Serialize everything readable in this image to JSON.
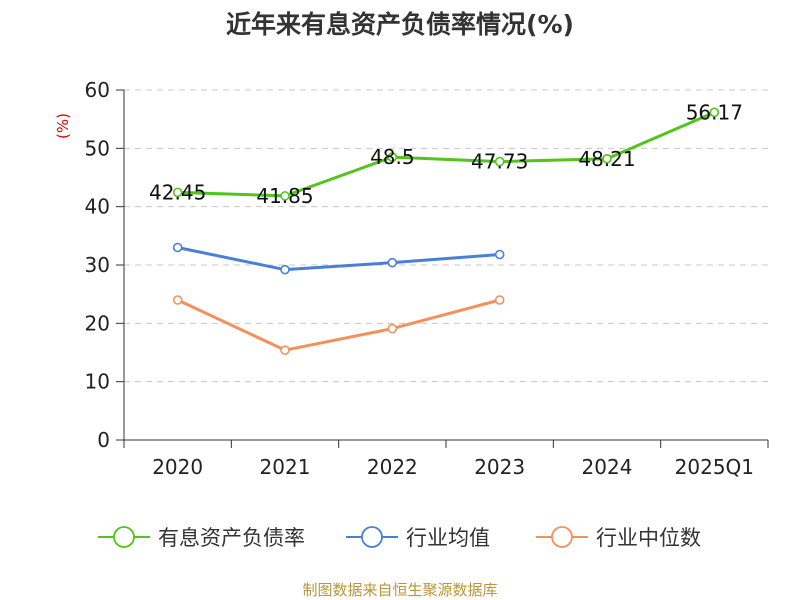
{
  "chart_data": {
    "type": "line",
    "title": "近年来有息资产负债率情况(%)",
    "ylabel": "(%)",
    "categories": [
      "2020",
      "2021",
      "2022",
      "2023",
      "2024",
      "2025Q1"
    ],
    "ylim": [
      0,
      60
    ],
    "yticks": [
      0,
      10,
      20,
      30,
      40,
      50,
      60
    ],
    "grid": true,
    "legend_position": "bottom",
    "series": [
      {
        "name": "有息资产负债率",
        "color": "#52c41a",
        "values": [
          42.45,
          41.85,
          48.5,
          47.73,
          48.21,
          56.17
        ],
        "labels": [
          "42.45",
          "41.85",
          "48.5",
          "47.73",
          "48.21",
          "56.17"
        ]
      },
      {
        "name": "行业均值",
        "color": "#4a7fd8",
        "values": [
          33.0,
          29.2,
          30.4,
          31.8,
          null,
          null
        ]
      },
      {
        "name": "行业中位数",
        "color": "#f4905a",
        "values": [
          24.0,
          15.4,
          19.1,
          24.0,
          null,
          null
        ]
      }
    ]
  },
  "source": "制图数据来自恒生聚源数据库"
}
